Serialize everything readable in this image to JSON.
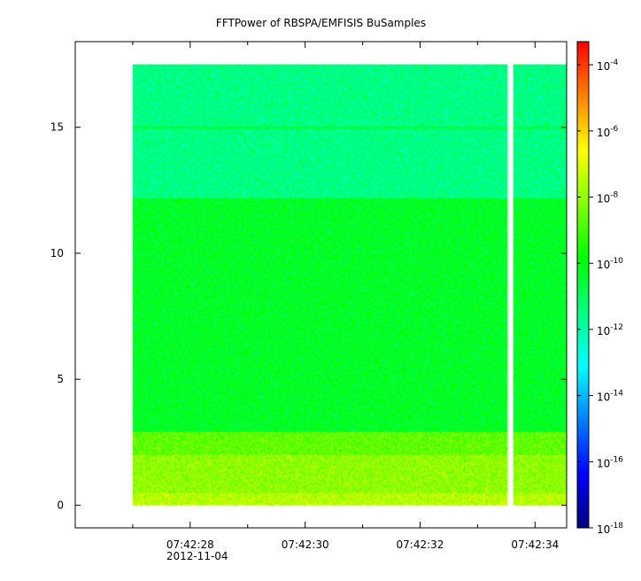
{
  "chart_data": {
    "type": "heatmap",
    "title": "FFTPower of RBSPA/EMFISIS  BuSamples",
    "xlabel": "",
    "ylabel": "",
    "x_ticks": [
      "07:42:28",
      "07:42:30",
      "07:42:32",
      "07:42:34"
    ],
    "x_tick_values": [
      28,
      30,
      32,
      34
    ],
    "x_minor_tick_values": [
      27,
      29,
      31,
      33
    ],
    "x_date_label": "2012-11-04",
    "xlim": [
      26.0,
      34.55
    ],
    "y_ticks": [
      "0",
      "5",
      "10",
      "15"
    ],
    "y_tick_values": [
      0,
      5,
      10,
      15
    ],
    "ylim": [
      -0.9,
      18.4
    ],
    "colorbar": {
      "scale": "log",
      "range_exponent": [
        -18,
        -3.3
      ],
      "tick_base": "10",
      "tick_exponents": [
        "-4",
        "-6",
        "-8",
        "-10",
        "-12",
        "-14",
        "-16",
        "-18"
      ],
      "colormap": [
        "#00007f",
        "#0000ff",
        "#0080ff",
        "#00ffff",
        "#00ff80",
        "#00ff00",
        "#80ff00",
        "#ffff00",
        "#ff8000",
        "#ff0000"
      ]
    },
    "data_extent": {
      "x": [
        27.0,
        34.55
      ],
      "y": [
        0.0,
        17.5
      ]
    },
    "gap_x": [
      33.52,
      33.62
    ],
    "bands": [
      {
        "y": [
          0.0,
          0.5
        ],
        "log_power": -7.5
      },
      {
        "y": [
          0.5,
          2.0
        ],
        "log_power": -8.0
      },
      {
        "y": [
          2.0,
          2.9
        ],
        "log_power": -8.6
      },
      {
        "y": [
          2.9,
          12.2
        ],
        "log_power": -10.3
      },
      {
        "y": [
          12.2,
          17.5
        ],
        "log_power": -11.5
      }
    ],
    "line_feature": {
      "y": 15.0,
      "log_power": -10.6
    }
  }
}
